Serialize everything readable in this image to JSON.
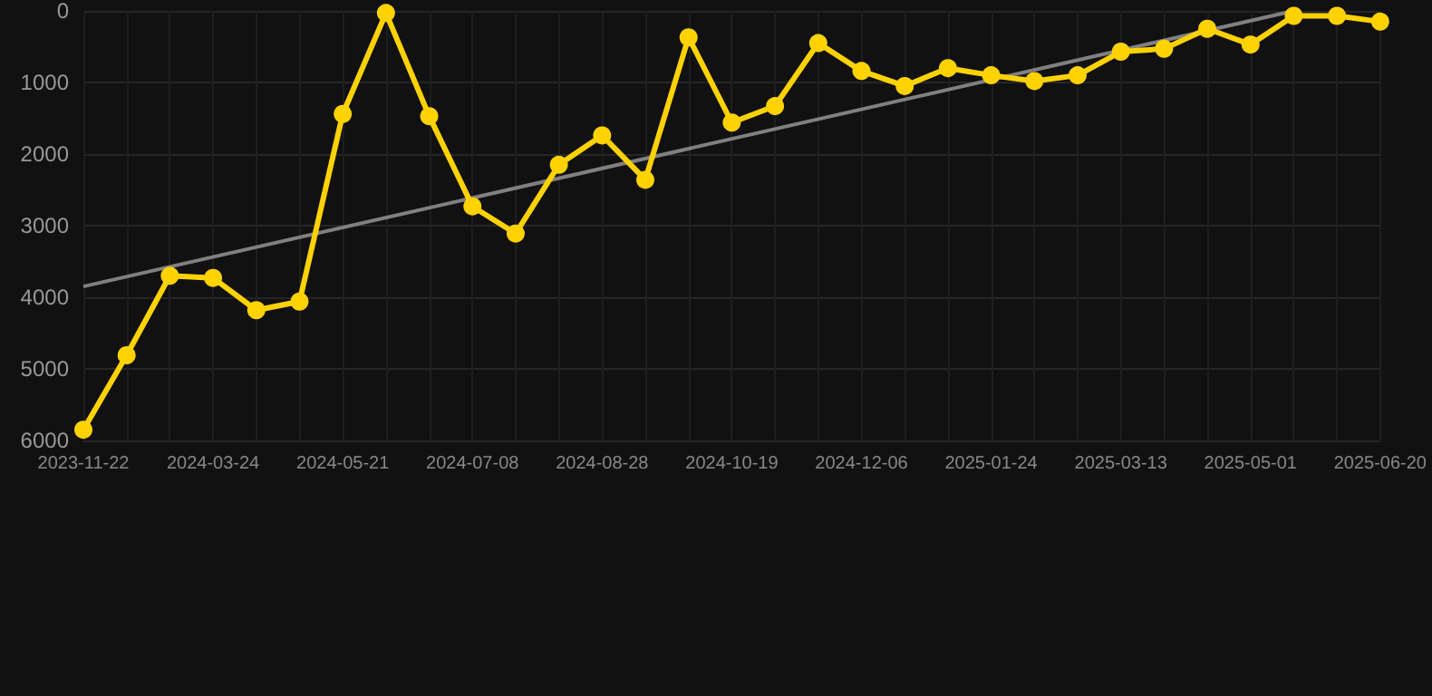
{
  "chart_data": {
    "type": "line",
    "categories": [
      "2023-11-22",
      null,
      null,
      "2024-03-24",
      null,
      null,
      "2024-05-21",
      null,
      null,
      "2024-07-08",
      null,
      null,
      "2024-08-28",
      null,
      null,
      "2024-10-19",
      null,
      null,
      "2024-12-06",
      null,
      null,
      "2025-01-24",
      null,
      null,
      "2025-03-13",
      null,
      null,
      "2025-05-01",
      null,
      null,
      "2025-06-20"
    ],
    "series": [
      {
        "color": "#ffd200",
        "marker": "circle",
        "values": [
          5850,
          4810,
          3700,
          3730,
          4180,
          4060,
          1440,
          30,
          1470,
          2730,
          3110,
          2150,
          1740,
          2360,
          370,
          1560,
          1330,
          450,
          840,
          1050,
          800,
          900,
          980,
          900,
          570,
          530,
          250,
          470,
          70,
          70,
          150
        ]
      },
      {
        "color": "#808080",
        "marker": "none",
        "values": [
          3850,
          null,
          null,
          null,
          null,
          null,
          null,
          null,
          null,
          null,
          null,
          null,
          null,
          null,
          null,
          null,
          null,
          null,
          null,
          null,
          null,
          null,
          null,
          null,
          null,
          null,
          null,
          null,
          0,
          null,
          null
        ]
      }
    ],
    "ylim": [
      6000,
      0
    ],
    "yticks": [
      0,
      1000,
      2000,
      3000,
      4000,
      5000,
      6000
    ],
    "grid": true
  }
}
